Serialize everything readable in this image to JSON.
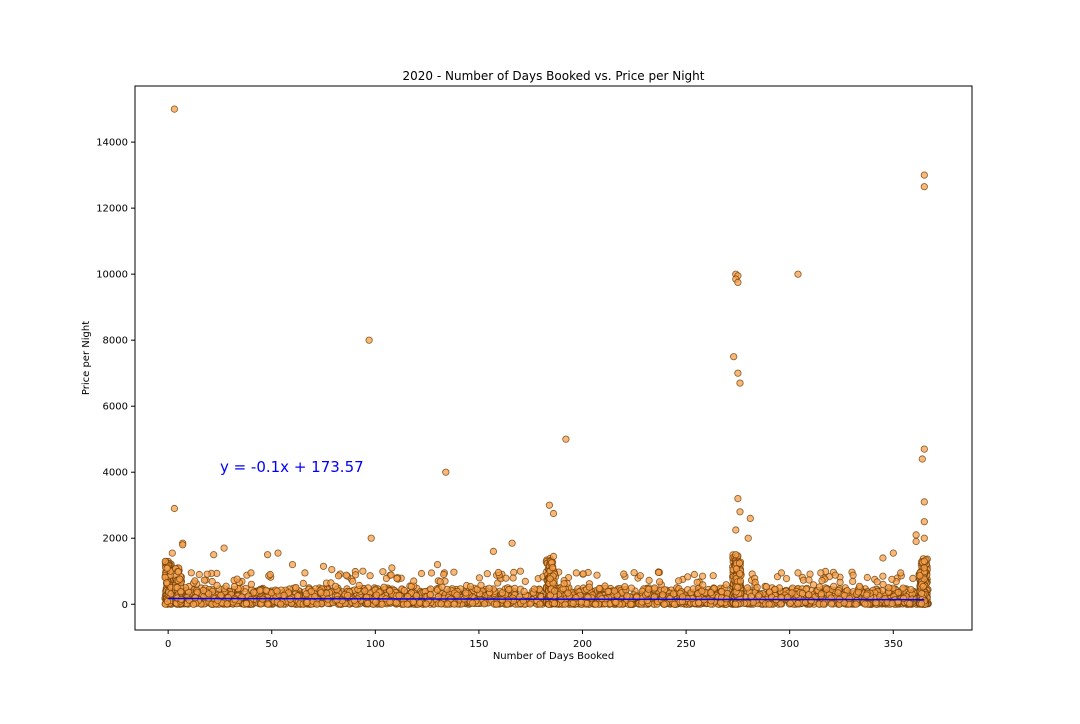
{
  "chart_data": {
    "type": "scatter",
    "title": "2020 - Number of Days Booked vs. Price per Night",
    "xlabel": "Number of Days Booked",
    "ylabel": "Price per Night",
    "xlim": [
      -16,
      388
    ],
    "ylim": [
      -780,
      15700
    ],
    "xticks": [
      0,
      50,
      100,
      150,
      200,
      250,
      300,
      350
    ],
    "yticks": [
      0,
      2000,
      4000,
      6000,
      8000,
      10000,
      12000,
      14000
    ],
    "grid": false,
    "legend": "none",
    "colors": {
      "marker_fill": "#F5A04C",
      "marker_edge": "#6B3A00",
      "regression_line": "#0000ff",
      "annotation": "#0000ff"
    },
    "regression": {
      "slope": -0.1,
      "intercept": 173.57,
      "x_range": [
        0,
        365
      ],
      "equation_label": "y = -0.1x + 173.57"
    },
    "annotations": [
      {
        "text": "y = -0.1x + 173.57",
        "x": 25,
        "y": 4000,
        "color": "#0000ff"
      }
    ],
    "outlier_points": [
      {
        "x": 3,
        "y": 15000
      },
      {
        "x": 365,
        "y": 13000
      },
      {
        "x": 365,
        "y": 12650
      },
      {
        "x": 274,
        "y": 10000
      },
      {
        "x": 275,
        "y": 9950
      },
      {
        "x": 274,
        "y": 9850
      },
      {
        "x": 275,
        "y": 9750
      },
      {
        "x": 304,
        "y": 10000
      },
      {
        "x": 97,
        "y": 8000
      },
      {
        "x": 273,
        "y": 7500
      },
      {
        "x": 275,
        "y": 7000
      },
      {
        "x": 276,
        "y": 6700
      },
      {
        "x": 192,
        "y": 5000
      },
      {
        "x": 365,
        "y": 4700
      },
      {
        "x": 364,
        "y": 4400
      },
      {
        "x": 134,
        "y": 4000
      },
      {
        "x": 275,
        "y": 3200
      },
      {
        "x": 365,
        "y": 3100
      },
      {
        "x": 184,
        "y": 3000
      },
      {
        "x": 3,
        "y": 2900
      },
      {
        "x": 276,
        "y": 2800
      },
      {
        "x": 186,
        "y": 2750
      },
      {
        "x": 281,
        "y": 2600
      },
      {
        "x": 365,
        "y": 2500
      },
      {
        "x": 274,
        "y": 2250
      },
      {
        "x": 361,
        "y": 2100
      },
      {
        "x": 98,
        "y": 2000
      },
      {
        "x": 280,
        "y": 2000
      },
      {
        "x": 365,
        "y": 2000
      },
      {
        "x": 361,
        "y": 1900
      },
      {
        "x": 166,
        "y": 1850
      },
      {
        "x": 7,
        "y": 1850
      },
      {
        "x": 7,
        "y": 1800
      },
      {
        "x": 27,
        "y": 1700
      },
      {
        "x": 157,
        "y": 1600
      },
      {
        "x": 2,
        "y": 1550
      },
      {
        "x": 53,
        "y": 1550
      },
      {
        "x": 350,
        "y": 1550
      },
      {
        "x": 22,
        "y": 1500
      },
      {
        "x": 48,
        "y": 1500
      },
      {
        "x": 274,
        "y": 1500
      },
      {
        "x": 345,
        "y": 1400
      },
      {
        "x": 186,
        "y": 1450
      },
      {
        "x": 130,
        "y": 1200
      },
      {
        "x": 60,
        "y": 1200
      },
      {
        "x": 75,
        "y": 1150
      },
      {
        "x": 108,
        "y": 1100
      },
      {
        "x": 79,
        "y": 1050
      },
      {
        "x": 94,
        "y": 1000
      },
      {
        "x": 170,
        "y": 1000
      },
      {
        "x": 197,
        "y": 950
      },
      {
        "x": 304,
        "y": 950
      },
      {
        "x": 296,
        "y": 950
      },
      {
        "x": 315,
        "y": 950
      },
      {
        "x": 40,
        "y": 950
      },
      {
        "x": 66,
        "y": 950
      },
      {
        "x": 254,
        "y": 900
      },
      {
        "x": 207,
        "y": 880
      },
      {
        "x": 322,
        "y": 880
      },
      {
        "x": 133,
        "y": 900
      },
      {
        "x": 86,
        "y": 880
      },
      {
        "x": 365,
        "y": 1300
      },
      {
        "x": 365,
        "y": 1100
      }
    ],
    "dense_band": {
      "description": "most listings cluster between 0 and ~1000 across all day counts",
      "typical_y_range": [
        0,
        500
      ],
      "upper_y_range": [
        500,
        1000
      ],
      "x_range": [
        0,
        367
      ],
      "dense_columns": [
        {
          "x": 0,
          "y_max": 1300
        },
        {
          "x": 5,
          "y_max": 1100
        },
        {
          "x": 184,
          "y_max": 1400
        },
        {
          "x": 185,
          "y_max": 1300
        },
        {
          "x": 274,
          "y_max": 1500
        },
        {
          "x": 275,
          "y_max": 1300
        },
        {
          "x": 365,
          "y_max": 1400
        },
        {
          "x": 364,
          "y_max": 1000
        }
      ]
    }
  }
}
